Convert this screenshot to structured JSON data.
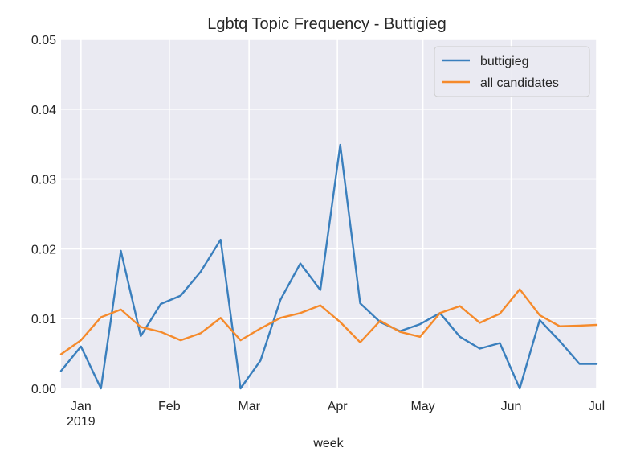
{
  "chart_data": {
    "type": "line",
    "title": "Lgbtq Topic Frequency - Buttigieg",
    "xlabel": "week",
    "ylabel": "",
    "ylim": [
      0,
      0.05
    ],
    "xlim": [
      "2018-12-25",
      "2019-07-01"
    ],
    "y_ticks": [
      "0.00",
      "0.01",
      "0.02",
      "0.03",
      "0.04",
      "0.05"
    ],
    "x_ticks": [
      {
        "date": "2019-01-01",
        "label": "Jan",
        "sublabel": "2019"
      },
      {
        "date": "2019-02-01",
        "label": "Feb"
      },
      {
        "date": "2019-03-01",
        "label": "Mar"
      },
      {
        "date": "2019-04-01",
        "label": "Apr"
      },
      {
        "date": "2019-05-01",
        "label": "May"
      },
      {
        "date": "2019-06-01",
        "label": "Jun"
      },
      {
        "date": "2019-07-01",
        "label": "Jul"
      }
    ],
    "grid": true,
    "legend_position": "top-right",
    "x": [
      "2018-12-25",
      "2019-01-01",
      "2019-01-08",
      "2019-01-15",
      "2019-01-22",
      "2019-01-29",
      "2019-02-05",
      "2019-02-12",
      "2019-02-19",
      "2019-02-26",
      "2019-03-05",
      "2019-03-12",
      "2019-03-19",
      "2019-03-26",
      "2019-04-02",
      "2019-04-09",
      "2019-04-16",
      "2019-04-23",
      "2019-04-30",
      "2019-05-07",
      "2019-05-14",
      "2019-05-21",
      "2019-05-28",
      "2019-06-04",
      "2019-06-11",
      "2019-06-18",
      "2019-06-25",
      "2019-07-01"
    ],
    "series": [
      {
        "name": "buttigieg",
        "color": "#3a7fbd",
        "values": [
          0.0025,
          0.006,
          0.0,
          0.0197,
          0.0075,
          0.0121,
          0.0133,
          0.0167,
          0.0213,
          0.0,
          0.004,
          0.0127,
          0.0179,
          0.0141,
          0.0349,
          0.0122,
          0.0095,
          0.0082,
          0.0092,
          0.0108,
          0.0074,
          0.0057,
          0.0065,
          0.0,
          0.0098,
          0.0068,
          0.0035,
          0.0035
        ]
      },
      {
        "name": "all candidates",
        "color": "#f58a2b",
        "values": [
          0.0049,
          0.0069,
          0.0102,
          0.0113,
          0.0088,
          0.0081,
          0.0069,
          0.0079,
          0.0101,
          0.0069,
          0.0086,
          0.0101,
          0.0108,
          0.0119,
          0.0095,
          0.0066,
          0.0097,
          0.0081,
          0.0074,
          0.0108,
          0.0118,
          0.0094,
          0.0107,
          0.0142,
          0.0105,
          0.0089,
          0.009,
          0.0091
        ]
      }
    ]
  }
}
